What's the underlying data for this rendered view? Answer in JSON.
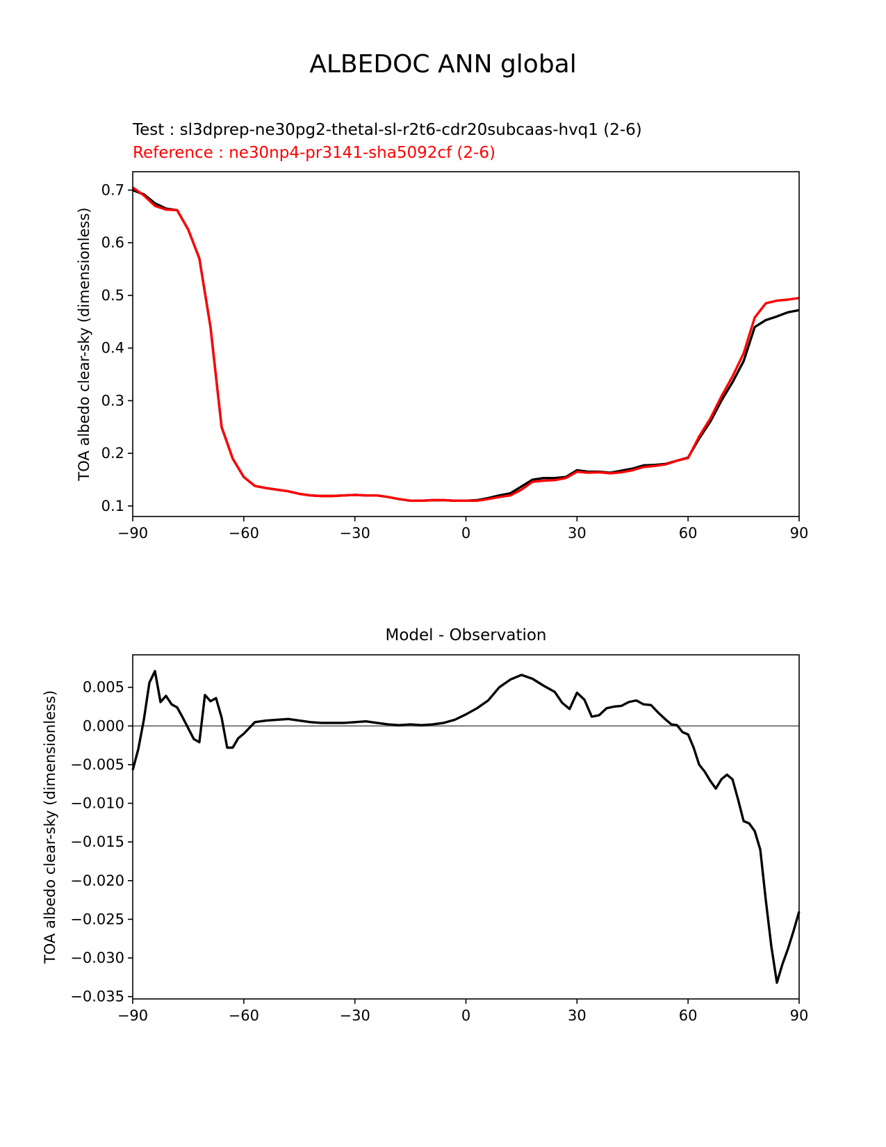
{
  "figure": {
    "title": "ALBEDOC ANN global",
    "test_label": "Test : sl3dprep-ne30pg2-thetal-sl-r2t6-cdr20subcaas-hvq1 (2-6)",
    "reference_label": "Reference : ne30np4-pr3141-sha5092cf (2-6)",
    "diff_title": "Model - Observation"
  },
  "chart_data": [
    {
      "type": "line",
      "title": "",
      "xlabel": "",
      "ylabel": "TOA albedo clear-sky (dimensionless)",
      "xlim": [
        -90,
        90
      ],
      "ylim": [
        0.08,
        0.735
      ],
      "xticks": [
        -90,
        -60,
        -30,
        0,
        30,
        60,
        90
      ],
      "xtick_labels": [
        "−90",
        "−60",
        "−30",
        "0",
        "30",
        "60",
        "90"
      ],
      "yticks": [
        0.1,
        0.2,
        0.3,
        0.4,
        0.5,
        0.6,
        0.7
      ],
      "ytick_labels": [
        "0.1",
        "0.2",
        "0.3",
        "0.4",
        "0.5",
        "0.6",
        "0.7"
      ],
      "grid": false,
      "x": [
        -90,
        -87,
        -84,
        -81,
        -78,
        -75,
        -72,
        -69,
        -66,
        -63,
        -60,
        -57,
        -54,
        -51,
        -48,
        -45,
        -42,
        -39,
        -36,
        -33,
        -30,
        -27,
        -24,
        -21,
        -18,
        -15,
        -12,
        -9,
        -6,
        -3,
        0,
        3,
        6,
        9,
        12,
        15,
        18,
        21,
        24,
        27,
        30,
        33,
        36,
        39,
        42,
        45,
        48,
        51,
        54,
        57,
        60,
        63,
        66,
        69,
        72,
        75,
        78,
        81,
        84,
        87,
        90
      ],
      "series": [
        {
          "color": "#000000",
          "values": [
            0.7,
            0.692,
            0.675,
            0.665,
            0.662,
            0.625,
            0.57,
            0.44,
            0.25,
            0.19,
            0.155,
            0.138,
            0.134,
            0.131,
            0.128,
            0.123,
            0.12,
            0.119,
            0.119,
            0.12,
            0.121,
            0.12,
            0.12,
            0.117,
            0.113,
            0.11,
            0.11,
            0.111,
            0.111,
            0.11,
            0.11,
            0.111,
            0.115,
            0.12,
            0.124,
            0.137,
            0.15,
            0.153,
            0.153,
            0.155,
            0.168,
            0.165,
            0.165,
            0.163,
            0.167,
            0.171,
            0.177,
            0.178,
            0.18,
            0.186,
            0.192,
            0.228,
            0.26,
            0.3,
            0.335,
            0.375,
            0.44,
            0.453,
            0.46,
            0.468,
            0.472
          ]
        },
        {
          "color": "#ff0000",
          "values": [
            0.705,
            0.69,
            0.67,
            0.663,
            0.662,
            0.625,
            0.57,
            0.44,
            0.25,
            0.19,
            0.155,
            0.138,
            0.134,
            0.131,
            0.128,
            0.123,
            0.12,
            0.119,
            0.119,
            0.12,
            0.121,
            0.12,
            0.12,
            0.117,
            0.113,
            0.11,
            0.11,
            0.111,
            0.111,
            0.11,
            0.11,
            0.11,
            0.113,
            0.117,
            0.12,
            0.131,
            0.146,
            0.148,
            0.149,
            0.153,
            0.165,
            0.163,
            0.164,
            0.162,
            0.164,
            0.168,
            0.174,
            0.176,
            0.179,
            0.186,
            0.191,
            0.232,
            0.266,
            0.308,
            0.346,
            0.39,
            0.458,
            0.485,
            0.49,
            0.492,
            0.495
          ]
        }
      ]
    },
    {
      "type": "line",
      "title": "Model - Observation",
      "xlabel": "",
      "ylabel": "TOA albedo clear-sky (dimensionless)",
      "xlim": [
        -90,
        90
      ],
      "ylim": [
        -0.0353,
        0.0092
      ],
      "xticks": [
        -90,
        -60,
        -30,
        0,
        30,
        60,
        90
      ],
      "xtick_labels": [
        "−90",
        "−60",
        "−30",
        "0",
        "30",
        "60",
        "90"
      ],
      "yticks": [
        0.005,
        0.0,
        -0.005,
        -0.01,
        -0.015,
        -0.02,
        -0.025,
        -0.03,
        -0.035
      ],
      "ytick_labels": [
        "0.005",
        "0.000",
        "−0.005",
        "−0.010",
        "−0.015",
        "−0.020",
        "−0.025",
        "−0.030",
        "−0.035"
      ],
      "grid": false,
      "zero_line_color": "#808080",
      "x": [
        -90,
        -88.5,
        -87,
        -85.5,
        -84,
        -82.5,
        -81,
        -79.5,
        -78,
        -76.5,
        -75,
        -73.5,
        -72,
        -70.5,
        -69,
        -67.5,
        -66,
        -64.5,
        -63,
        -61.5,
        -60,
        -57,
        -54,
        -51,
        -48,
        -45,
        -42,
        -39,
        -36,
        -33,
        -30,
        -27,
        -24,
        -21,
        -18,
        -15,
        -12,
        -9,
        -6,
        -3,
        0,
        3,
        6,
        9,
        12,
        15,
        18,
        21,
        24,
        26,
        28,
        30,
        32,
        34,
        36,
        38,
        40,
        42,
        44,
        46,
        48,
        50,
        52,
        54,
        55.5,
        57,
        58.5,
        60,
        61.5,
        63,
        64.5,
        66,
        67.5,
        69,
        70.5,
        72,
        73.5,
        75,
        76.5,
        78,
        79.5,
        81,
        82.5,
        84,
        85.5,
        87,
        88.5,
        90
      ],
      "series": [
        {
          "color": "#000000",
          "values": [
            -0.0057,
            -0.003,
            0.0008,
            0.0056,
            0.0071,
            0.0031,
            0.0039,
            0.0028,
            0.0024,
            0.0011,
            -0.0003,
            -0.0017,
            -0.0021,
            0.004,
            0.0032,
            0.0036,
            0.0011,
            -0.0028,
            -0.0028,
            -0.0016,
            -0.001,
            0.0005,
            0.0007,
            0.0008,
            0.0009,
            0.0007,
            0.0005,
            0.0004,
            0.0004,
            0.0004,
            0.0005,
            0.0006,
            0.0004,
            0.0002,
            0.0001,
            0.0002,
            0.0001,
            0.0002,
            0.0004,
            0.0008,
            0.0015,
            0.0023,
            0.0033,
            0.005,
            0.006,
            0.0066,
            0.0061,
            0.0052,
            0.0044,
            0.003,
            0.0022,
            0.0043,
            0.0034,
            0.0012,
            0.0014,
            0.0023,
            0.0025,
            0.0026,
            0.0031,
            0.0033,
            0.0028,
            0.0027,
            0.0017,
            0.0008,
            0.0002,
            0.0001,
            -0.0008,
            -0.0011,
            -0.0028,
            -0.005,
            -0.0059,
            -0.0071,
            -0.0081,
            -0.0069,
            -0.0063,
            -0.0069,
            -0.0095,
            -0.0123,
            -0.0126,
            -0.0136,
            -0.016,
            -0.0225,
            -0.0285,
            -0.0332,
            -0.0308,
            -0.0288,
            -0.0265,
            -0.024
          ]
        }
      ]
    }
  ]
}
